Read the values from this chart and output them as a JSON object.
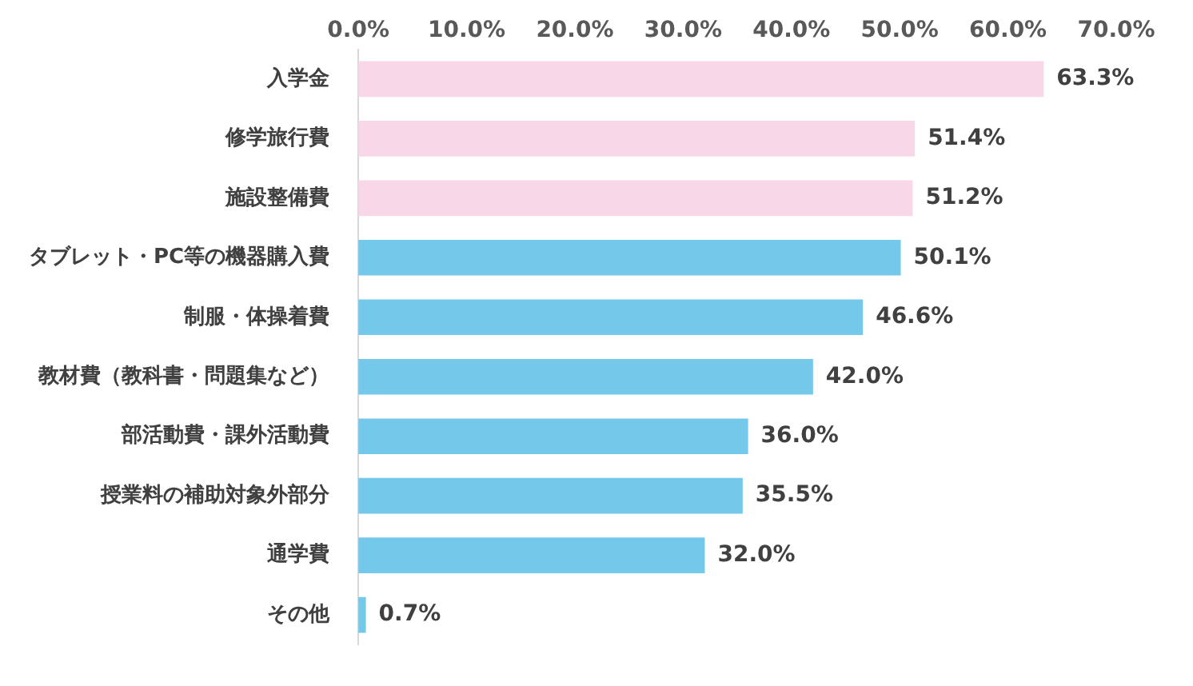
{
  "chart_data": {
    "type": "bar",
    "orientation": "horizontal",
    "categories": [
      "入学金",
      "修学旅行費",
      "施設整備費",
      "タブレット・PC等の機器購入費",
      "制服・体操着費",
      "教材費（教科書・問題集など）",
      "部活動費・課外活動費",
      "授業料の補助対象外部分",
      "通学費",
      "その他"
    ],
    "values": [
      63.3,
      51.4,
      51.2,
      50.1,
      46.6,
      42.0,
      36.0,
      35.5,
      32.0,
      0.7
    ],
    "colors": [
      "#f8d8e8",
      "#f8d8e8",
      "#f8d8e8",
      "#74c8ea",
      "#74c8ea",
      "#74c8ea",
      "#74c8ea",
      "#74c8ea",
      "#74c8ea",
      "#74c8ea"
    ],
    "value_labels": [
      "63.3%",
      "51.4%",
      "51.2%",
      "50.1%",
      "46.6%",
      "42.0%",
      "36.0%",
      "35.5%",
      "32.0%",
      "0.7%"
    ],
    "xlim": [
      0,
      70
    ],
    "xticks": [
      {
        "value": 0,
        "label": "0.0%"
      },
      {
        "value": 10,
        "label": "10.0%"
      },
      {
        "value": 20,
        "label": "20.0%"
      },
      {
        "value": 30,
        "label": "30.0%"
      },
      {
        "value": 40,
        "label": "40.0%"
      },
      {
        "value": 50,
        "label": "50.0%"
      },
      {
        "value": 60,
        "label": "60.0%"
      },
      {
        "value": 70,
        "label": "70.0%"
      }
    ]
  }
}
